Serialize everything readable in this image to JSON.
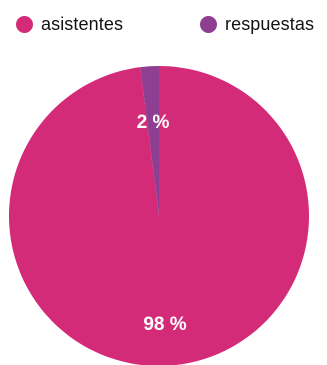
{
  "chart_data": {
    "type": "pie",
    "categories": [
      "asistentes",
      "respuestas"
    ],
    "values": [
      98,
      2
    ],
    "data_labels": [
      "98 %",
      "2 %"
    ],
    "colors": [
      "#d42b78",
      "#8e3f91"
    ],
    "legend_position": "top",
    "title": ""
  }
}
